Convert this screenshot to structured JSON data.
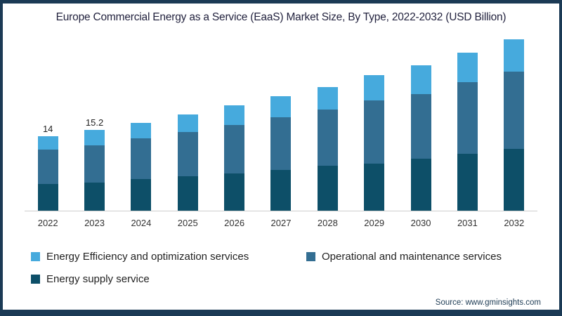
{
  "title": "Europe Commercial Energy as a Service (EaaS) Market Size, By Type, 2022-2032 (USD Billion)",
  "source": "Source: www.gminsights.com",
  "colors": {
    "energy_efficiency": "#46aadd",
    "operational_maintenance": "#336e92",
    "energy_supply": "#0d4f68",
    "frame_border": "#1b3a55",
    "axis_line": "#cccccc"
  },
  "legend": [
    {
      "label": "Energy Efficiency and optimization services",
      "color": "#46aadd"
    },
    {
      "label": "Operational and maintenance services",
      "color": "#336e92"
    },
    {
      "label": "Energy supply service",
      "color": "#0d4f68"
    }
  ],
  "chart_data": {
    "type": "bar",
    "stacked": true,
    "title": "Europe Commercial Energy as a Service (EaaS) Market Size, By Type, 2022-2032 (USD Billion)",
    "unit": "USD Billion",
    "xlabel": "",
    "ylabel": "",
    "grid": false,
    "legend_position": "bottom",
    "categories": [
      "2022",
      "2023",
      "2024",
      "2025",
      "2026",
      "2027",
      "2028",
      "2029",
      "2030",
      "2031",
      "2032"
    ],
    "series": [
      {
        "name": "Energy supply service",
        "color": "#0d4f68",
        "values": [
          5.0,
          5.3,
          5.9,
          6.4,
          7.0,
          7.6,
          8.4,
          8.8,
          9.7,
          10.7,
          11.6
        ]
      },
      {
        "name": "Operational and maintenance services",
        "color": "#336e92",
        "values": [
          6.5,
          7.0,
          7.6,
          8.3,
          9.1,
          9.9,
          10.5,
          11.9,
          12.2,
          13.4,
          14.5
        ]
      },
      {
        "name": "Energy Efficiency and optimization services",
        "color": "#46aadd",
        "values": [
          2.5,
          2.9,
          2.9,
          3.3,
          3.6,
          3.9,
          4.3,
          4.7,
          5.4,
          5.5,
          6.0
        ]
      }
    ],
    "totals": [
      14,
      15.2,
      16.4,
      18.0,
      19.7,
      21.4,
      23.2,
      25.4,
      27.3,
      29.6,
      32.1
    ],
    "bar_labels": [
      "14",
      "15.2",
      null,
      null,
      null,
      null,
      null,
      null,
      null,
      null,
      null
    ]
  }
}
